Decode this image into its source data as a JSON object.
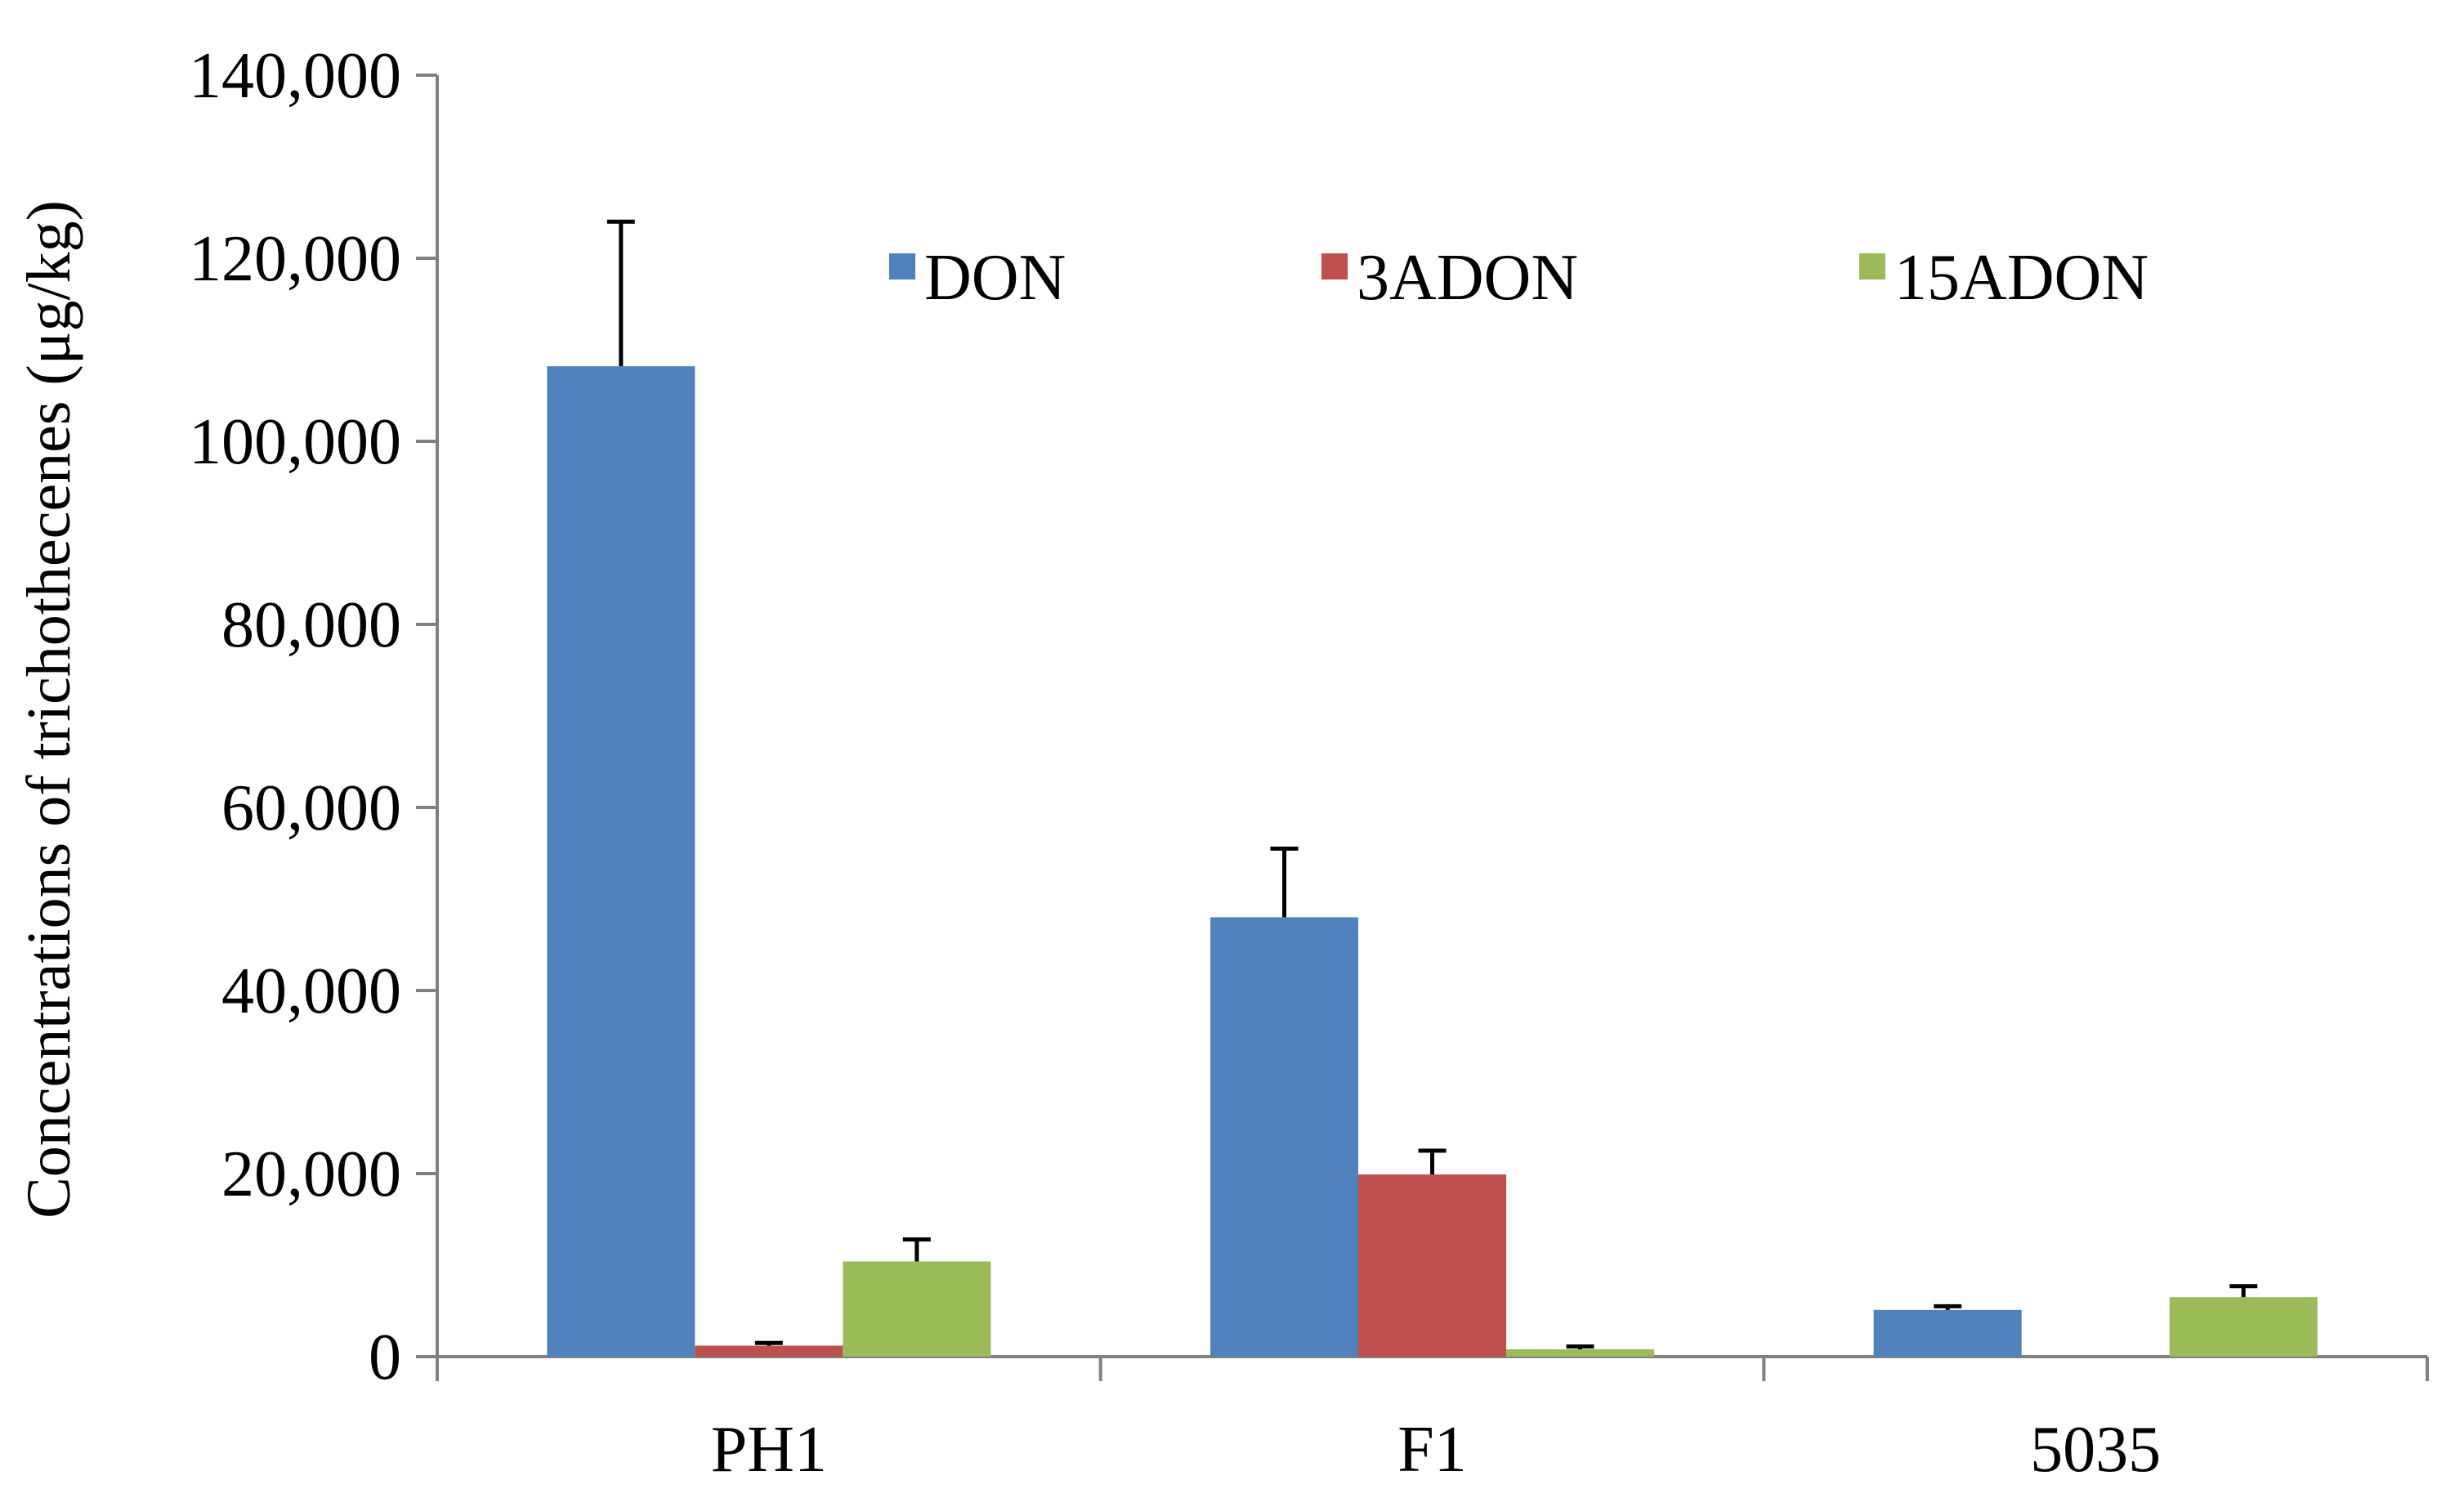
{
  "chart_data": {
    "type": "bar",
    "ylabel": "Concentrations of trichothecenes (μg/kg)",
    "ylim": [
      0,
      140000
    ],
    "yticks": [
      0,
      20000,
      40000,
      60000,
      80000,
      100000,
      120000,
      140000
    ],
    "ytick_labels": [
      "0",
      "20,000",
      "40,000",
      "60,000",
      "80,000",
      "100,000",
      "120,000",
      "140,000"
    ],
    "categories": [
      "PH1",
      "F1",
      "5035"
    ],
    "grid": false,
    "legend_position": "top",
    "series": [
      {
        "name": "DON",
        "color": "#4F81BD",
        "values": [
          108200,
          48000,
          5100
        ],
        "errors": [
          15800,
          7500,
          400
        ]
      },
      {
        "name": "3ADON",
        "color": "#C0504D",
        "values": [
          1200,
          19900,
          0
        ],
        "errors": [
          300,
          2600,
          0
        ]
      },
      {
        "name": "15ADON",
        "color": "#9BBB59",
        "values": [
          10400,
          800,
          6500
        ],
        "errors": [
          2400,
          300,
          1200
        ]
      }
    ]
  }
}
